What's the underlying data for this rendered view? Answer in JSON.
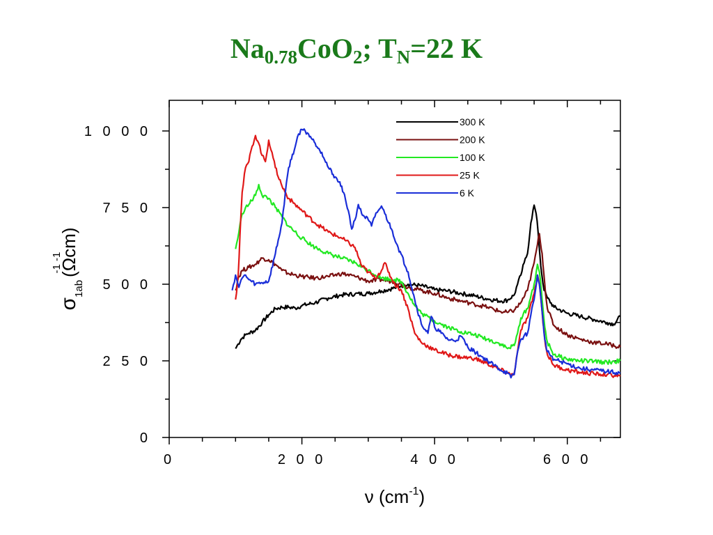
{
  "title": {
    "main": "Na",
    "sub1": "0.78",
    "mid": "CoO",
    "sub2": "2",
    "mid2": "; T",
    "sub3": "N",
    "tail": "=22 K"
  },
  "chart_data": {
    "type": "line",
    "xlabel": "ν (cm-1)",
    "xlabel_parts": {
      "main": "ν (cm",
      "sup": "-1",
      "close": ")"
    },
    "ylabel": "σ1ab (Ωcm)-1",
    "ylabel_parts": {
      "sigma": "σ",
      "sub": "1ab",
      "unit": "(Ωcm)",
      "sup": "-1  -1"
    },
    "xlim": [
      0,
      680
    ],
    "ylim": [
      0,
      1100
    ],
    "xticks": [
      0,
      200,
      400,
      600
    ],
    "xtick_labels": [
      "0",
      "2 0 0",
      "4 0 0",
      "6 0 0"
    ],
    "yticks": [
      0,
      250,
      500,
      750,
      1000
    ],
    "ytick_labels": [
      "0",
      "2 5 0",
      "5 0 0",
      "7 5 0",
      "1 0 0 0"
    ],
    "legend_position": "top-right",
    "series": [
      {
        "name": "300 K",
        "color": "#000000",
        "points": [
          [
            100,
            290
          ],
          [
            104,
            305
          ],
          [
            108,
            320
          ],
          [
            115,
            335
          ],
          [
            120,
            340
          ],
          [
            130,
            350
          ],
          [
            140,
            375
          ],
          [
            150,
            400
          ],
          [
            160,
            420
          ],
          [
            170,
            425
          ],
          [
            180,
            425
          ],
          [
            190,
            422
          ],
          [
            200,
            430
          ],
          [
            220,
            440
          ],
          [
            240,
            455
          ],
          [
            260,
            465
          ],
          [
            280,
            468
          ],
          [
            300,
            470
          ],
          [
            320,
            478
          ],
          [
            340,
            488
          ],
          [
            350,
            495
          ],
          [
            360,
            500
          ],
          [
            380,
            495
          ],
          [
            400,
            482
          ],
          [
            420,
            478
          ],
          [
            440,
            470
          ],
          [
            460,
            462
          ],
          [
            480,
            452
          ],
          [
            500,
            445
          ],
          [
            510,
            448
          ],
          [
            520,
            465
          ],
          [
            525,
            500
          ],
          [
            530,
            530
          ],
          [
            535,
            570
          ],
          [
            540,
            600
          ],
          [
            545,
            700
          ],
          [
            550,
            758
          ],
          [
            553,
            730
          ],
          [
            556,
            670
          ],
          [
            560,
            560
          ],
          [
            565,
            480
          ],
          [
            570,
            455
          ],
          [
            580,
            425
          ],
          [
            600,
            405
          ],
          [
            620,
            395
          ],
          [
            640,
            385
          ],
          [
            660,
            375
          ],
          [
            670,
            370
          ],
          [
            680,
            395
          ]
        ]
      },
      {
        "name": "200 K",
        "color": "#7a1010",
        "points": [
          [
            100,
            480
          ],
          [
            104,
            520
          ],
          [
            110,
            545
          ],
          [
            120,
            555
          ],
          [
            130,
            565
          ],
          [
            140,
            585
          ],
          [
            150,
            580
          ],
          [
            160,
            565
          ],
          [
            170,
            545
          ],
          [
            180,
            535
          ],
          [
            200,
            525
          ],
          [
            220,
            520
          ],
          [
            240,
            525
          ],
          [
            260,
            535
          ],
          [
            280,
            525
          ],
          [
            300,
            510
          ],
          [
            320,
            515
          ],
          [
            340,
            508
          ],
          [
            360,
            490
          ],
          [
            380,
            480
          ],
          [
            400,
            470
          ],
          [
            420,
            455
          ],
          [
            440,
            445
          ],
          [
            460,
            435
          ],
          [
            480,
            425
          ],
          [
            500,
            410
          ],
          [
            510,
            408
          ],
          [
            520,
            415
          ],
          [
            530,
            440
          ],
          [
            540,
            480
          ],
          [
            550,
            570
          ],
          [
            555,
            630
          ],
          [
            558,
            665
          ],
          [
            562,
            600
          ],
          [
            566,
            500
          ],
          [
            570,
            420
          ],
          [
            580,
            365
          ],
          [
            600,
            335
          ],
          [
            620,
            320
          ],
          [
            640,
            310
          ],
          [
            660,
            305
          ],
          [
            680,
            295
          ]
        ]
      },
      {
        "name": "100 K",
        "color": "#22e822",
        "points": [
          [
            100,
            615
          ],
          [
            105,
            670
          ],
          [
            110,
            730
          ],
          [
            115,
            750
          ],
          [
            120,
            760
          ],
          [
            130,
            790
          ],
          [
            135,
            825
          ],
          [
            140,
            790
          ],
          [
            150,
            780
          ],
          [
            160,
            750
          ],
          [
            170,
            720
          ],
          [
            180,
            690
          ],
          [
            200,
            650
          ],
          [
            220,
            620
          ],
          [
            240,
            600
          ],
          [
            260,
            585
          ],
          [
            280,
            570
          ],
          [
            300,
            545
          ],
          [
            320,
            520
          ],
          [
            340,
            515
          ],
          [
            350,
            508
          ],
          [
            360,
            470
          ],
          [
            370,
            430
          ],
          [
            380,
            405
          ],
          [
            400,
            380
          ],
          [
            420,
            360
          ],
          [
            440,
            345
          ],
          [
            460,
            335
          ],
          [
            480,
            320
          ],
          [
            500,
            305
          ],
          [
            510,
            290
          ],
          [
            520,
            300
          ],
          [
            525,
            340
          ],
          [
            530,
            390
          ],
          [
            540,
            420
          ],
          [
            550,
            500
          ],
          [
            555,
            565
          ],
          [
            558,
            540
          ],
          [
            562,
            450
          ],
          [
            566,
            360
          ],
          [
            570,
            310
          ],
          [
            580,
            270
          ],
          [
            600,
            255
          ],
          [
            620,
            250
          ],
          [
            640,
            248
          ],
          [
            660,
            245
          ],
          [
            680,
            250
          ]
        ]
      },
      {
        "name": "25 K",
        "color": "#e01818",
        "points": [
          [
            100,
            450
          ],
          [
            104,
            530
          ],
          [
            108,
            720
          ],
          [
            110,
            800
          ],
          [
            115,
            880
          ],
          [
            120,
            900
          ],
          [
            125,
            950
          ],
          [
            130,
            985
          ],
          [
            135,
            960
          ],
          [
            140,
            920
          ],
          [
            145,
            900
          ],
          [
            150,
            970
          ],
          [
            155,
            930
          ],
          [
            160,
            880
          ],
          [
            170,
            820
          ],
          [
            180,
            780
          ],
          [
            190,
            760
          ],
          [
            200,
            740
          ],
          [
            220,
            700
          ],
          [
            240,
            670
          ],
          [
            260,
            650
          ],
          [
            280,
            620
          ],
          [
            290,
            560
          ],
          [
            300,
            540
          ],
          [
            310,
            520
          ],
          [
            320,
            545
          ],
          [
            325,
            570
          ],
          [
            330,
            540
          ],
          [
            340,
            500
          ],
          [
            350,
            480
          ],
          [
            360,
            420
          ],
          [
            370,
            340
          ],
          [
            380,
            310
          ],
          [
            400,
            285
          ],
          [
            420,
            270
          ],
          [
            440,
            262
          ],
          [
            460,
            258
          ],
          [
            480,
            240
          ],
          [
            500,
            220
          ],
          [
            515,
            205
          ],
          [
            520,
            210
          ],
          [
            525,
            280
          ],
          [
            530,
            350
          ],
          [
            540,
            390
          ],
          [
            550,
            470
          ],
          [
            555,
            530
          ],
          [
            558,
            500
          ],
          [
            562,
            410
          ],
          [
            566,
            320
          ],
          [
            570,
            270
          ],
          [
            580,
            235
          ],
          [
            600,
            220
          ],
          [
            620,
            212
          ],
          [
            640,
            208
          ],
          [
            660,
            205
          ],
          [
            680,
            200
          ]
        ]
      },
      {
        "name": "6 K",
        "color": "#1a2ed8",
        "points": [
          [
            95,
            480
          ],
          [
            100,
            530
          ],
          [
            105,
            490
          ],
          [
            110,
            520
          ],
          [
            115,
            530
          ],
          [
            120,
            515
          ],
          [
            130,
            500
          ],
          [
            140,
            505
          ],
          [
            150,
            510
          ],
          [
            160,
            600
          ],
          [
            170,
            700
          ],
          [
            175,
            800
          ],
          [
            180,
            880
          ],
          [
            190,
            950
          ],
          [
            195,
            990
          ],
          [
            200,
            1005
          ],
          [
            205,
            1000
          ],
          [
            210,
            990
          ],
          [
            220,
            960
          ],
          [
            230,
            930
          ],
          [
            240,
            880
          ],
          [
            250,
            850
          ],
          [
            260,
            820
          ],
          [
            270,
            740
          ],
          [
            275,
            680
          ],
          [
            280,
            710
          ],
          [
            285,
            760
          ],
          [
            290,
            730
          ],
          [
            300,
            710
          ],
          [
            305,
            690
          ],
          [
            310,
            720
          ],
          [
            315,
            740
          ],
          [
            320,
            755
          ],
          [
            325,
            730
          ],
          [
            335,
            680
          ],
          [
            345,
            620
          ],
          [
            360,
            540
          ],
          [
            370,
            450
          ],
          [
            380,
            370
          ],
          [
            390,
            340
          ],
          [
            395,
            395
          ],
          [
            400,
            360
          ],
          [
            410,
            340
          ],
          [
            420,
            320
          ],
          [
            430,
            315
          ],
          [
            440,
            330
          ],
          [
            450,
            295
          ],
          [
            460,
            280
          ],
          [
            470,
            265
          ],
          [
            480,
            250
          ],
          [
            490,
            235
          ],
          [
            500,
            220
          ],
          [
            510,
            210
          ],
          [
            515,
            195
          ],
          [
            520,
            205
          ],
          [
            525,
            280
          ],
          [
            530,
            320
          ],
          [
            540,
            340
          ],
          [
            545,
            400
          ],
          [
            550,
            450
          ],
          [
            555,
            530
          ],
          [
            558,
            500
          ],
          [
            562,
            410
          ],
          [
            566,
            320
          ],
          [
            570,
            280
          ],
          [
            580,
            255
          ],
          [
            600,
            240
          ],
          [
            620,
            225
          ],
          [
            640,
            220
          ],
          [
            660,
            215
          ],
          [
            680,
            210
          ]
        ]
      }
    ]
  }
}
